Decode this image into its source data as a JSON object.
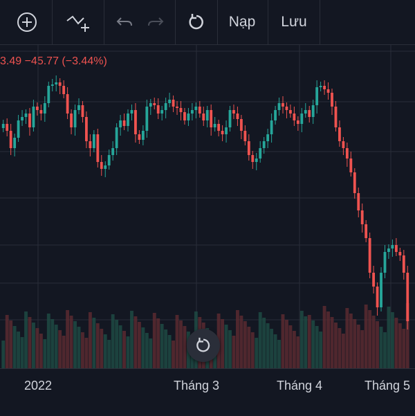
{
  "toolbar": {
    "add_icon": "plus-circle-icon",
    "indicator_icon": "add-indicator-icon",
    "undo_icon": "undo-icon",
    "redo_icon": "redo-icon",
    "reset_icon": "reload-icon",
    "load_label": "Nạp",
    "save_label": "Lưu"
  },
  "legend": {
    "value_text": "3.49 −45.77 (−3.44%)"
  },
  "time_axis": {
    "labels": [
      "2022",
      "Tháng 3",
      "Tháng 4",
      "Tháng 5"
    ]
  },
  "reset_button": {
    "icon": "reload-icon"
  },
  "colors": {
    "background": "#131722",
    "up": "#26a69a",
    "down": "#ef5350",
    "grid": "#2a2e39"
  },
  "chart_data": {
    "type": "candlestick",
    "title": "",
    "x_range_labels": [
      "2022",
      "Tháng 3",
      "Tháng 4",
      "Tháng 5"
    ],
    "candles_trend": "range-bound Jan–Apr, sharp decline from mid-April into May",
    "volume_shown": true
  }
}
